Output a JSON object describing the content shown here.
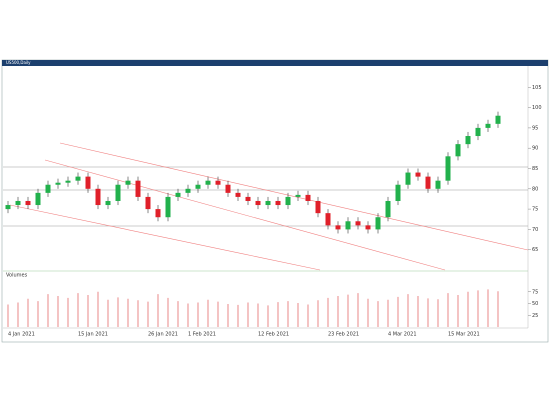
{
  "chart_data": {
    "type": "candlestick",
    "title": "US500,Daily",
    "categories": [
      "4 Jan 2021",
      null,
      null,
      null,
      null,
      null,
      null,
      "15 Jan 2021",
      null,
      null,
      null,
      null,
      null,
      null,
      "26 Jan 2021",
      null,
      null,
      null,
      "1 Feb 2021",
      null,
      null,
      null,
      null,
      null,
      null,
      "12 Feb 2021",
      null,
      null,
      null,
      null,
      null,
      null,
      "23 Feb 2021",
      null,
      null,
      null,
      null,
      null,
      "4 Mar 2021",
      null,
      null,
      null,
      null,
      null,
      "15 Mar 2021",
      null,
      null,
      null,
      null,
      null
    ],
    "open": [
      75,
      76,
      77,
      76,
      79,
      81,
      81.5,
      82,
      83,
      80,
      76,
      77,
      81,
      82,
      78,
      75,
      73,
      78,
      79,
      80,
      81,
      82,
      81,
      79,
      78,
      77,
      76,
      77,
      76,
      78,
      78.5,
      77,
      74,
      71,
      70,
      72,
      71,
      70,
      73,
      77,
      81,
      84,
      83,
      80,
      82,
      88,
      91,
      93,
      95,
      96
    ],
    "high": [
      77,
      78,
      78,
      80,
      82,
      82.5,
      83,
      84,
      84,
      81,
      78,
      82,
      83,
      83,
      79,
      76,
      79,
      80,
      81,
      82,
      83,
      83,
      82,
      80,
      79,
      78,
      78,
      78,
      79,
      79.5,
      79.5,
      78,
      75,
      72,
      73,
      73,
      72,
      74,
      78,
      82,
      85,
      85,
      84,
      83,
      89,
      92,
      94,
      96,
      97,
      99
    ],
    "low": [
      74,
      75,
      75,
      75,
      78,
      80,
      80.5,
      81,
      79,
      75,
      75,
      76,
      80,
      77,
      74,
      72,
      72,
      77,
      78,
      79,
      80,
      80,
      78,
      77,
      76,
      75,
      75,
      75,
      75,
      77,
      76,
      73,
      70,
      69,
      69,
      70,
      69,
      69,
      72,
      76,
      80,
      82,
      79,
      79,
      81,
      87,
      90,
      92,
      94,
      95
    ],
    "close": [
      76,
      77,
      76,
      79,
      81,
      81.5,
      82,
      83,
      80,
      76,
      77,
      81,
      82,
      78,
      75,
      73,
      78,
      79,
      80,
      81,
      82,
      81,
      79,
      78,
      77,
      76,
      77,
      76,
      78,
      78.5,
      77,
      74,
      71,
      70,
      72,
      71,
      70,
      73,
      77,
      81,
      84,
      83,
      80,
      82,
      88,
      91,
      93,
      95,
      96,
      98
    ],
    "up_color": "#22b14c",
    "down_color": "#e0202a",
    "ylim": [
      60,
      110
    ],
    "yticks": [
      65,
      70,
      75,
      80,
      85,
      90,
      95,
      100,
      105
    ],
    "volume": {
      "title": "Volumes",
      "color": "#e36a6a",
      "values": [
        48,
        52,
        60,
        55,
        70,
        66,
        62,
        72,
        68,
        75,
        58,
        63,
        60,
        57,
        54,
        70,
        62,
        55,
        50,
        52,
        58,
        54,
        49,
        47,
        52,
        50,
        46,
        53,
        55,
        51,
        48,
        57,
        62,
        66,
        69,
        72,
        60,
        55,
        58,
        64,
        70,
        66,
        61,
        59,
        72,
        68,
        75,
        78,
        80,
        76
      ],
      "ylim": [
        0,
        100
      ],
      "yticks": [
        25,
        50,
        75
      ]
    }
  }
}
